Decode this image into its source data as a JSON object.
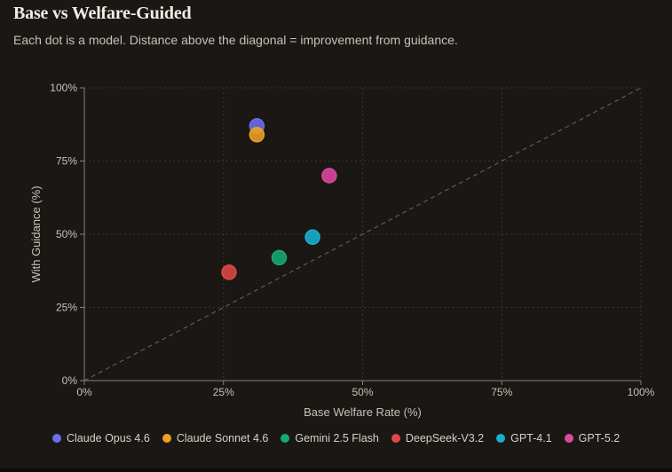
{
  "header": {
    "title": "Base vs Welfare-Guided",
    "subtitle": "Each dot is a model. Distance above the diagonal = improvement from guidance."
  },
  "colors": {
    "background": "#1a1714",
    "text": "#c9c1b6",
    "grid": "#3a352f",
    "axis": "#8a8279",
    "diagonal": "#6e675f"
  },
  "chart_data": {
    "type": "scatter",
    "title": "Base vs Welfare-Guided",
    "subtitle": "Each dot is a model. Distance above the diagonal = improvement from guidance.",
    "xlabel": "Base Welfare Rate (%)",
    "ylabel": "With Guidance (%)",
    "xlim": [
      0,
      100
    ],
    "ylim": [
      0,
      100
    ],
    "xticks": [
      0,
      25,
      50,
      75,
      100
    ],
    "yticks": [
      0,
      25,
      50,
      75,
      100
    ],
    "xtick_labels": [
      "0%",
      "25%",
      "50%",
      "75%",
      "100%"
    ],
    "ytick_labels": [
      "0%",
      "25%",
      "50%",
      "75%",
      "100%"
    ],
    "grid": true,
    "reference_line": "diagonal y = x (dashed)",
    "legend_position": "bottom",
    "series": [
      {
        "name": "Claude Opus 4.6",
        "color": "#6b6ef0",
        "x": 31,
        "y": 87
      },
      {
        "name": "Claude Sonnet 4.6",
        "color": "#f0a020",
        "x": 31,
        "y": 84
      },
      {
        "name": "Gemini 2.5 Flash",
        "color": "#18a878",
        "x": 35,
        "y": 42
      },
      {
        "name": "DeepSeek-V3.2",
        "color": "#e04848",
        "x": 26,
        "y": 37
      },
      {
        "name": "GPT-4.1",
        "color": "#18b0d0",
        "x": 41,
        "y": 49
      },
      {
        "name": "GPT-5.2",
        "color": "#e048a0",
        "x": 44,
        "y": 70
      }
    ]
  }
}
